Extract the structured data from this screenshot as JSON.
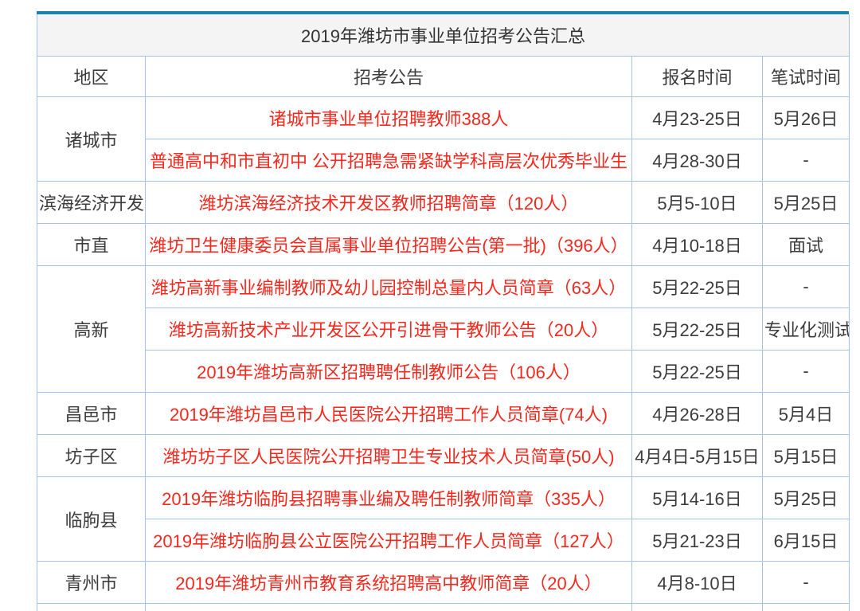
{
  "title": "2019年潍坊市事业单位招考公告汇总",
  "columns": [
    "地区",
    "招考公告",
    "报名时间",
    "笔试时间"
  ],
  "colors": {
    "accent_bar": "#1e81ab",
    "cell_border": "#a6c1e6",
    "title_background": "#f4f4f5",
    "announcement_red": "#f5281e",
    "text_dark": "#3c3c3c"
  },
  "groups": [
    {
      "region": "诸城市",
      "items": [
        {
          "announcement": "诸城市事业单位招聘教师388人",
          "apply_time": "4月23-25日",
          "exam_time": "5月26日"
        },
        {
          "announcement": "普通高中和市直初中 公开招聘急需紧缺学科高层次优秀毕业生",
          "apply_time": "4月28-30日",
          "exam_time": "-"
        }
      ]
    },
    {
      "region": "滨海经济开发",
      "items": [
        {
          "announcement": "潍坊滨海经济技术开发区教师招聘简章（120人）",
          "apply_time": "5月5-10日",
          "exam_time": "5月25日"
        }
      ]
    },
    {
      "region": "市直",
      "items": [
        {
          "announcement": "潍坊卫生健康委员会直属事业单位招聘公告(第一批)（396人）",
          "apply_time": "4月10-18日",
          "exam_time": "面试"
        }
      ]
    },
    {
      "region": "高新",
      "items": [
        {
          "announcement": "潍坊高新事业编制教师及幼儿园控制总量内人员简章（63人）",
          "apply_time": "5月22-25日",
          "exam_time": "-"
        },
        {
          "announcement": "潍坊高新技术产业开发区公开引进骨干教师公告（20人）",
          "apply_time": "5月22-25日",
          "exam_time": "专业化测试"
        },
        {
          "announcement": "2019年潍坊高新区招聘聘任制教师公告（106人）",
          "apply_time": "5月22-25日",
          "exam_time": "-"
        }
      ]
    },
    {
      "region": "昌邑市",
      "items": [
        {
          "announcement": "2019年潍坊昌邑市人民医院公开招聘工作人员简章(74人)",
          "apply_time": "4月26-28日",
          "exam_time": "5月4日"
        }
      ]
    },
    {
      "region": "坊子区",
      "items": [
        {
          "announcement": "潍坊坊子区人民医院公开招聘卫生专业技术人员简章(50人)",
          "apply_time": "4月4日-5月15日",
          "exam_time": "5月15日"
        }
      ]
    },
    {
      "region": "临朐县",
      "items": [
        {
          "announcement": "2019年潍坊临朐县招聘事业编及聘任制教师简章（335人）",
          "apply_time": "5月14-16日",
          "exam_time": "5月25日"
        },
        {
          "announcement": "2019年潍坊临朐县公立医院公开招聘工作人员简章（127人）",
          "apply_time": "5月21-23日",
          "exam_time": "6月15日"
        }
      ]
    },
    {
      "region": "青州市",
      "items": [
        {
          "announcement": "2019年潍坊青州市教育系统招聘高中教师简章（20人）",
          "apply_time": "4月8-10日",
          "exam_time": "-"
        }
      ]
    }
  ]
}
